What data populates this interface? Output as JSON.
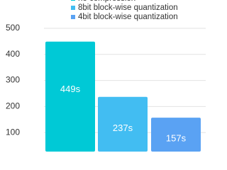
{
  "chart_data": {
    "type": "bar",
    "series": [
      {
        "name": "no compression",
        "color": "#00c9d6",
        "values": [
          449
        ],
        "value_labels": [
          "449s"
        ]
      },
      {
        "name": "8bit block-wise quantization",
        "color": "#42bdf2",
        "values": [
          237
        ],
        "value_labels": [
          "237s"
        ]
      },
      {
        "name": "4bit block-wise quantization",
        "color": "#5aa2f3",
        "values": [
          157
        ],
        "value_labels": [
          "157s"
        ]
      }
    ],
    "ylim": [
      27,
      500
    ],
    "yticks": [
      100,
      200,
      300,
      400,
      500
    ],
    "grid": true
  }
}
